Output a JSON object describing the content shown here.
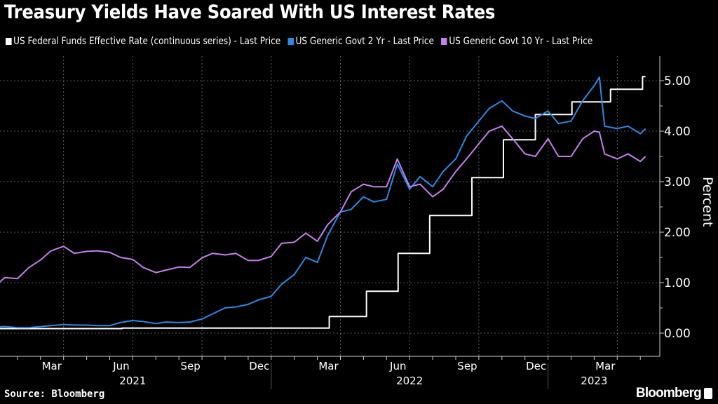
{
  "chart_data": {
    "type": "line",
    "title": "Treasury Yields Have Soared With US Interest Rates",
    "ylabel": "Percent",
    "ylim": [
      -0.45,
      5.5
    ],
    "yticks": [
      "0.00",
      "1.00",
      "2.00",
      "3.00",
      "4.00",
      "5.00"
    ],
    "xticks": [
      {
        "label": "Mar",
        "date": "2021-03-16"
      },
      {
        "label": "Jun",
        "date": "2021-06-16"
      },
      {
        "label": "Sep",
        "date": "2021-09-16"
      },
      {
        "label": "Dec",
        "date": "2021-12-16"
      },
      {
        "label": "Mar",
        "date": "2022-03-16"
      },
      {
        "label": "Jun",
        "date": "2022-06-16"
      },
      {
        "label": "Sep",
        "date": "2022-09-16"
      },
      {
        "label": "Dec",
        "date": "2022-12-16"
      },
      {
        "label": "Mar",
        "date": "2023-03-16"
      }
    ],
    "years": [
      {
        "label": "2021",
        "date": "2021-07-01"
      },
      {
        "label": "2022",
        "date": "2022-07-01"
      },
      {
        "label": "2023",
        "date": "2023-03-01"
      }
    ],
    "grid": true,
    "legend_position": "top",
    "x": [
      "2021-01-01",
      "2021-01-15",
      "2021-02-01",
      "2021-02-15",
      "2021-03-01",
      "2021-03-15",
      "2021-04-01",
      "2021-04-15",
      "2021-05-01",
      "2021-05-15",
      "2021-06-01",
      "2021-06-15",
      "2021-07-01",
      "2021-07-15",
      "2021-08-01",
      "2021-08-15",
      "2021-09-01",
      "2021-09-15",
      "2021-10-01",
      "2021-10-15",
      "2021-11-01",
      "2021-11-15",
      "2021-12-01",
      "2021-12-15",
      "2022-01-01",
      "2022-01-15",
      "2022-02-01",
      "2022-02-15",
      "2022-03-01",
      "2022-03-15",
      "2022-04-01",
      "2022-04-15",
      "2022-05-01",
      "2022-05-15",
      "2022-06-01",
      "2022-06-15",
      "2022-07-01",
      "2022-07-15",
      "2022-08-01",
      "2022-08-15",
      "2022-09-01",
      "2022-09-15",
      "2022-10-01",
      "2022-10-15",
      "2022-11-01",
      "2022-11-15",
      "2022-12-01",
      "2022-12-15",
      "2023-01-01",
      "2023-01-15",
      "2023-02-01",
      "2023-02-15",
      "2023-03-01",
      "2023-03-08",
      "2023-03-15",
      "2023-04-01",
      "2023-04-15",
      "2023-05-01",
      "2023-05-08"
    ],
    "series": [
      {
        "name": "US Federal Funds Effective Rate (continuous series) - Last Price",
        "color": "#ffffff",
        "step": true,
        "points": [
          [
            "2021-01-01",
            0.09
          ],
          [
            "2021-06-17",
            0.1
          ],
          [
            "2022-03-17",
            0.33
          ],
          [
            "2022-05-05",
            0.83
          ],
          [
            "2022-06-16",
            1.58
          ],
          [
            "2022-07-28",
            2.33
          ],
          [
            "2022-09-22",
            3.08
          ],
          [
            "2022-11-03",
            3.83
          ],
          [
            "2022-12-15",
            4.33
          ],
          [
            "2023-02-02",
            4.58
          ],
          [
            "2023-03-23",
            4.83
          ],
          [
            "2023-05-04",
            5.08
          ],
          [
            "2023-05-08",
            5.08
          ]
        ]
      },
      {
        "name": "US Generic Govt 2 Yr - Last Price",
        "color": "#2d8ae6",
        "values": [
          0.12,
          0.13,
          0.11,
          0.11,
          0.13,
          0.15,
          0.17,
          0.16,
          0.16,
          0.15,
          0.15,
          0.21,
          0.25,
          0.23,
          0.19,
          0.22,
          0.21,
          0.22,
          0.28,
          0.38,
          0.5,
          0.52,
          0.57,
          0.66,
          0.73,
          0.97,
          1.16,
          1.5,
          1.4,
          1.94,
          2.4,
          2.45,
          2.7,
          2.6,
          2.65,
          3.35,
          2.85,
          3.1,
          2.9,
          3.2,
          3.45,
          3.9,
          4.2,
          4.45,
          4.6,
          4.4,
          4.3,
          4.25,
          4.4,
          4.15,
          4.2,
          4.6,
          4.9,
          5.07,
          4.1,
          4.05,
          4.1,
          3.95,
          4.05
        ]
      },
      {
        "name": "US Generic Govt 10 Yr - Last Price",
        "color": "#c77ef0",
        "values": [
          0.92,
          1.1,
          1.08,
          1.3,
          1.45,
          1.63,
          1.72,
          1.58,
          1.62,
          1.63,
          1.6,
          1.5,
          1.46,
          1.3,
          1.2,
          1.25,
          1.31,
          1.3,
          1.49,
          1.58,
          1.55,
          1.58,
          1.44,
          1.44,
          1.52,
          1.78,
          1.8,
          1.98,
          1.82,
          2.15,
          2.4,
          2.8,
          2.95,
          2.9,
          2.9,
          3.45,
          2.9,
          2.95,
          2.7,
          2.85,
          3.2,
          3.45,
          3.75,
          4.0,
          4.1,
          3.85,
          3.55,
          3.5,
          3.85,
          3.5,
          3.5,
          3.85,
          4.0,
          3.98,
          3.55,
          3.45,
          3.55,
          3.4,
          3.5
        ]
      }
    ]
  },
  "footer": {
    "source": "Source: Bloomberg",
    "brand": "Bloomberg"
  }
}
